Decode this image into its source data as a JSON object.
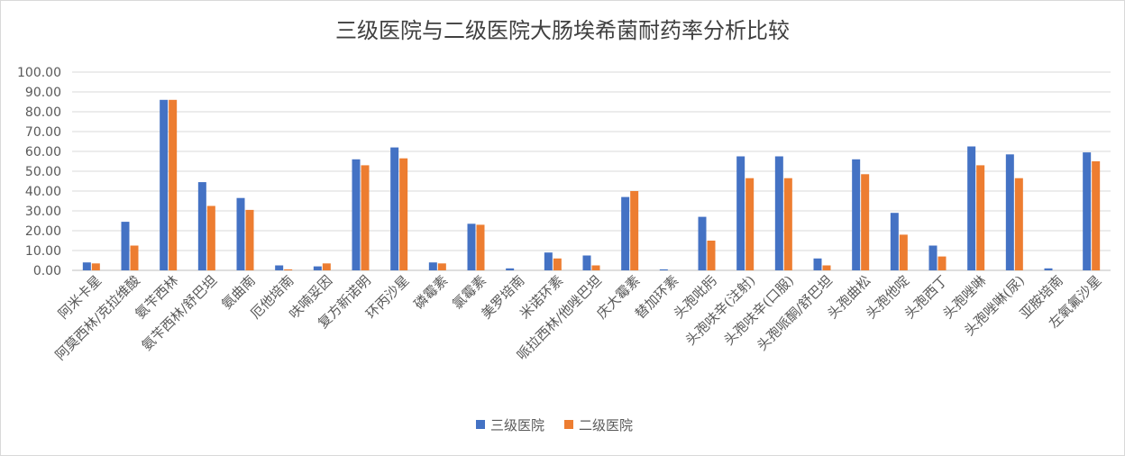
{
  "chart_data": {
    "type": "bar",
    "title": "三级医院与二级医院大肠埃希菌耐药率分析比较",
    "xlabel": "",
    "ylabel": "",
    "ylim": [
      0,
      100
    ],
    "yticks": [
      "0.00",
      "10.00",
      "20.00",
      "30.00",
      "40.00",
      "50.00",
      "60.00",
      "70.00",
      "80.00",
      "90.00",
      "100.00"
    ],
    "grid": true,
    "legend_position": "bottom",
    "categories": [
      "阿米卡星",
      "阿莫西林/克拉维酸",
      "氨苄西林",
      "氨苄西林/舒巴坦",
      "氨曲南",
      "厄他培南",
      "呋喃妥因",
      "复方新诺明",
      "环丙沙星",
      "磷霉素",
      "氯霉素",
      "美罗培南",
      "米诺环素",
      "哌拉西林/他唑巴坦",
      "庆大霉素",
      "替加环素",
      "头孢吡肟",
      "头孢呋辛(注射)",
      "头孢呋辛(口服)",
      "头孢哌酮/舒巴坦",
      "头孢曲松",
      "头孢他啶",
      "头孢西丁",
      "头孢唑啉",
      "头孢唑啉(尿)",
      "亚胺培南",
      "左氧氟沙星"
    ],
    "series": [
      {
        "name": "三级医院",
        "color": "#4472c4",
        "values": [
          4.0,
          24.5,
          86.0,
          44.5,
          36.5,
          2.5,
          2.0,
          56.0,
          62.0,
          4.0,
          23.5,
          1.0,
          9.0,
          7.5,
          37.0,
          0.5,
          27.0,
          57.5,
          57.5,
          6.0,
          56.0,
          29.0,
          12.5,
          62.5,
          58.5,
          1.0,
          59.5
        ]
      },
      {
        "name": "二级医院",
        "color": "#ed7d31",
        "values": [
          3.5,
          12.5,
          86.0,
          32.5,
          30.5,
          0.5,
          3.5,
          53.0,
          56.5,
          3.5,
          23.0,
          0.0,
          6.0,
          2.5,
          40.0,
          0.0,
          15.0,
          46.5,
          46.5,
          2.5,
          48.5,
          18.0,
          7.0,
          53.0,
          46.5,
          0.0,
          55.0
        ]
      }
    ]
  }
}
